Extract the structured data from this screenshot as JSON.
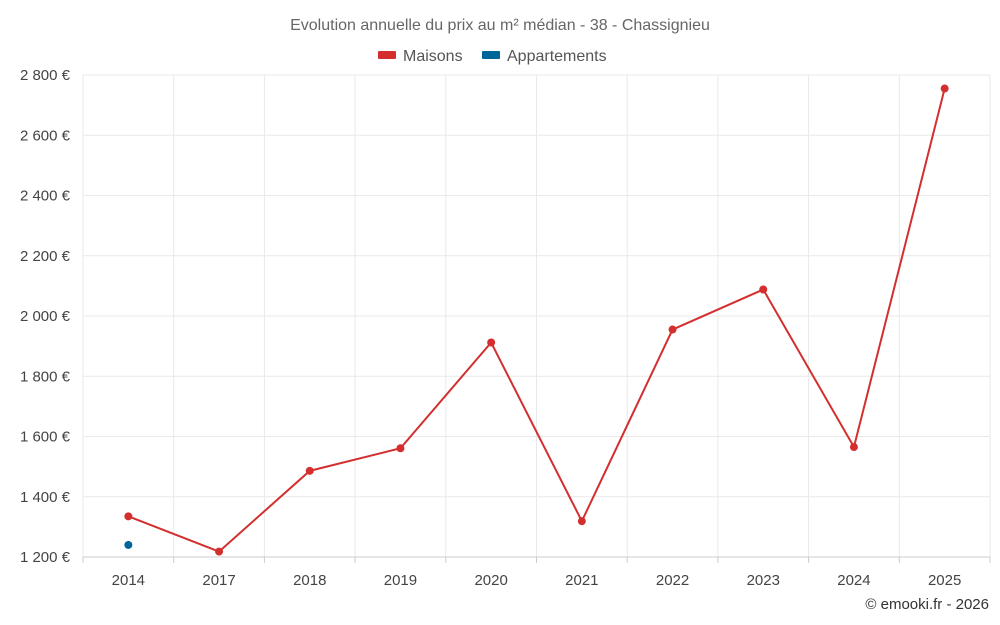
{
  "chart_data": {
    "type": "line",
    "title": "Evolution annuelle du prix au m² médian - 38 - Chassignieu",
    "categories": [
      "2014",
      "2017",
      "2018",
      "2019",
      "2020",
      "2021",
      "2022",
      "2023",
      "2024",
      "2025"
    ],
    "y_ticks": [
      "1 200 €",
      "1 400 €",
      "1 600 €",
      "1 800 €",
      "2 000 €",
      "2 200 €",
      "2 400 €",
      "2 600 €",
      "2 800 €"
    ],
    "ylim": [
      1200,
      2800
    ],
    "grid": true,
    "legend_position": "top-center",
    "series": [
      {
        "name": "Maisons",
        "color": "#d32f2f",
        "values": [
          1335,
          1218,
          1486,
          1561,
          1912,
          1319,
          1955,
          2088,
          1565,
          2755
        ]
      },
      {
        "name": "Appartements",
        "color": "#006699",
        "values": [
          1240,
          null,
          null,
          null,
          null,
          null,
          null,
          null,
          null,
          null
        ]
      }
    ],
    "credit": "© emooki.fr - 2026"
  }
}
